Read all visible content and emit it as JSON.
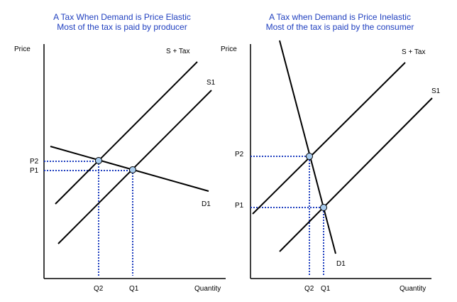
{
  "colors": {
    "title": "#1f3fbf",
    "guides": "#1f3fbf",
    "point_fill": "#a9cdf0",
    "lines": "#000000"
  },
  "left": {
    "title_line1": "A Tax When Demand is Price Elastic",
    "title_line2": "Most of the tax is paid by producer",
    "y_axis_label": "Price",
    "x_axis_label": "Quantity",
    "curves": {
      "supply_tax": "S + Tax",
      "supply": "S1",
      "demand": "D1"
    },
    "price_labels": [
      "P2",
      "P1"
    ],
    "quantity_labels": [
      "Q2",
      "Q1"
    ]
  },
  "right": {
    "title_line1": "A Tax when Demand is Price Inelastic",
    "title_line2": "Most of the tax is paid by the consumer",
    "y_axis_label": "Price",
    "x_axis_label": "Quantity",
    "curves": {
      "supply_tax": "S + Tax",
      "supply": "S1",
      "demand": "D1"
    },
    "price_labels": [
      "P2",
      "P1"
    ],
    "quantity_labels": [
      "Q2",
      "Q1"
    ]
  }
}
